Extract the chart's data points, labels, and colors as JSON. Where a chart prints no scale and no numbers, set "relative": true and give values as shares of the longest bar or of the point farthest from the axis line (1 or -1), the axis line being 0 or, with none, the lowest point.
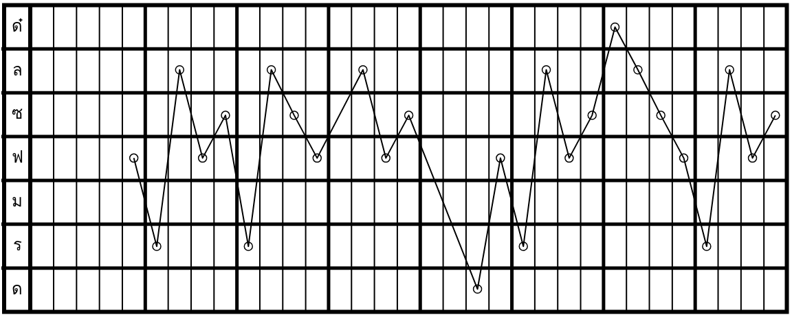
{
  "chart_data": {
    "type": "line",
    "relative": true,
    "categories": [
      null,
      null,
      null,
      null,
      null,
      null,
      null,
      null,
      null,
      null,
      null,
      null,
      null,
      null,
      null,
      null,
      null,
      null,
      null,
      null,
      null,
      null,
      null,
      null,
      null,
      null,
      null,
      null,
      null,
      null,
      null,
      null
    ],
    "values": [
      null,
      null,
      null,
      0.54,
      0.23,
      0.85,
      0.54,
      0.69,
      0.23,
      0.85,
      0.69,
      0.54,
      null,
      0.85,
      0.54,
      0.69,
      null,
      null,
      0.08,
      0.54,
      0.23,
      0.85,
      0.54,
      0.69,
      1,
      0.85,
      0.69,
      0.54,
      0.23,
      0.85,
      0.54,
      0.69
    ],
    "color": "#000000",
    "annotations": [
      "ด",
      "ร",
      "ม",
      "ฟ",
      "ซ",
      "ล",
      "ด๋"
    ],
    "grid": true,
    "marker": "circle",
    "line_style": "solid"
  }
}
